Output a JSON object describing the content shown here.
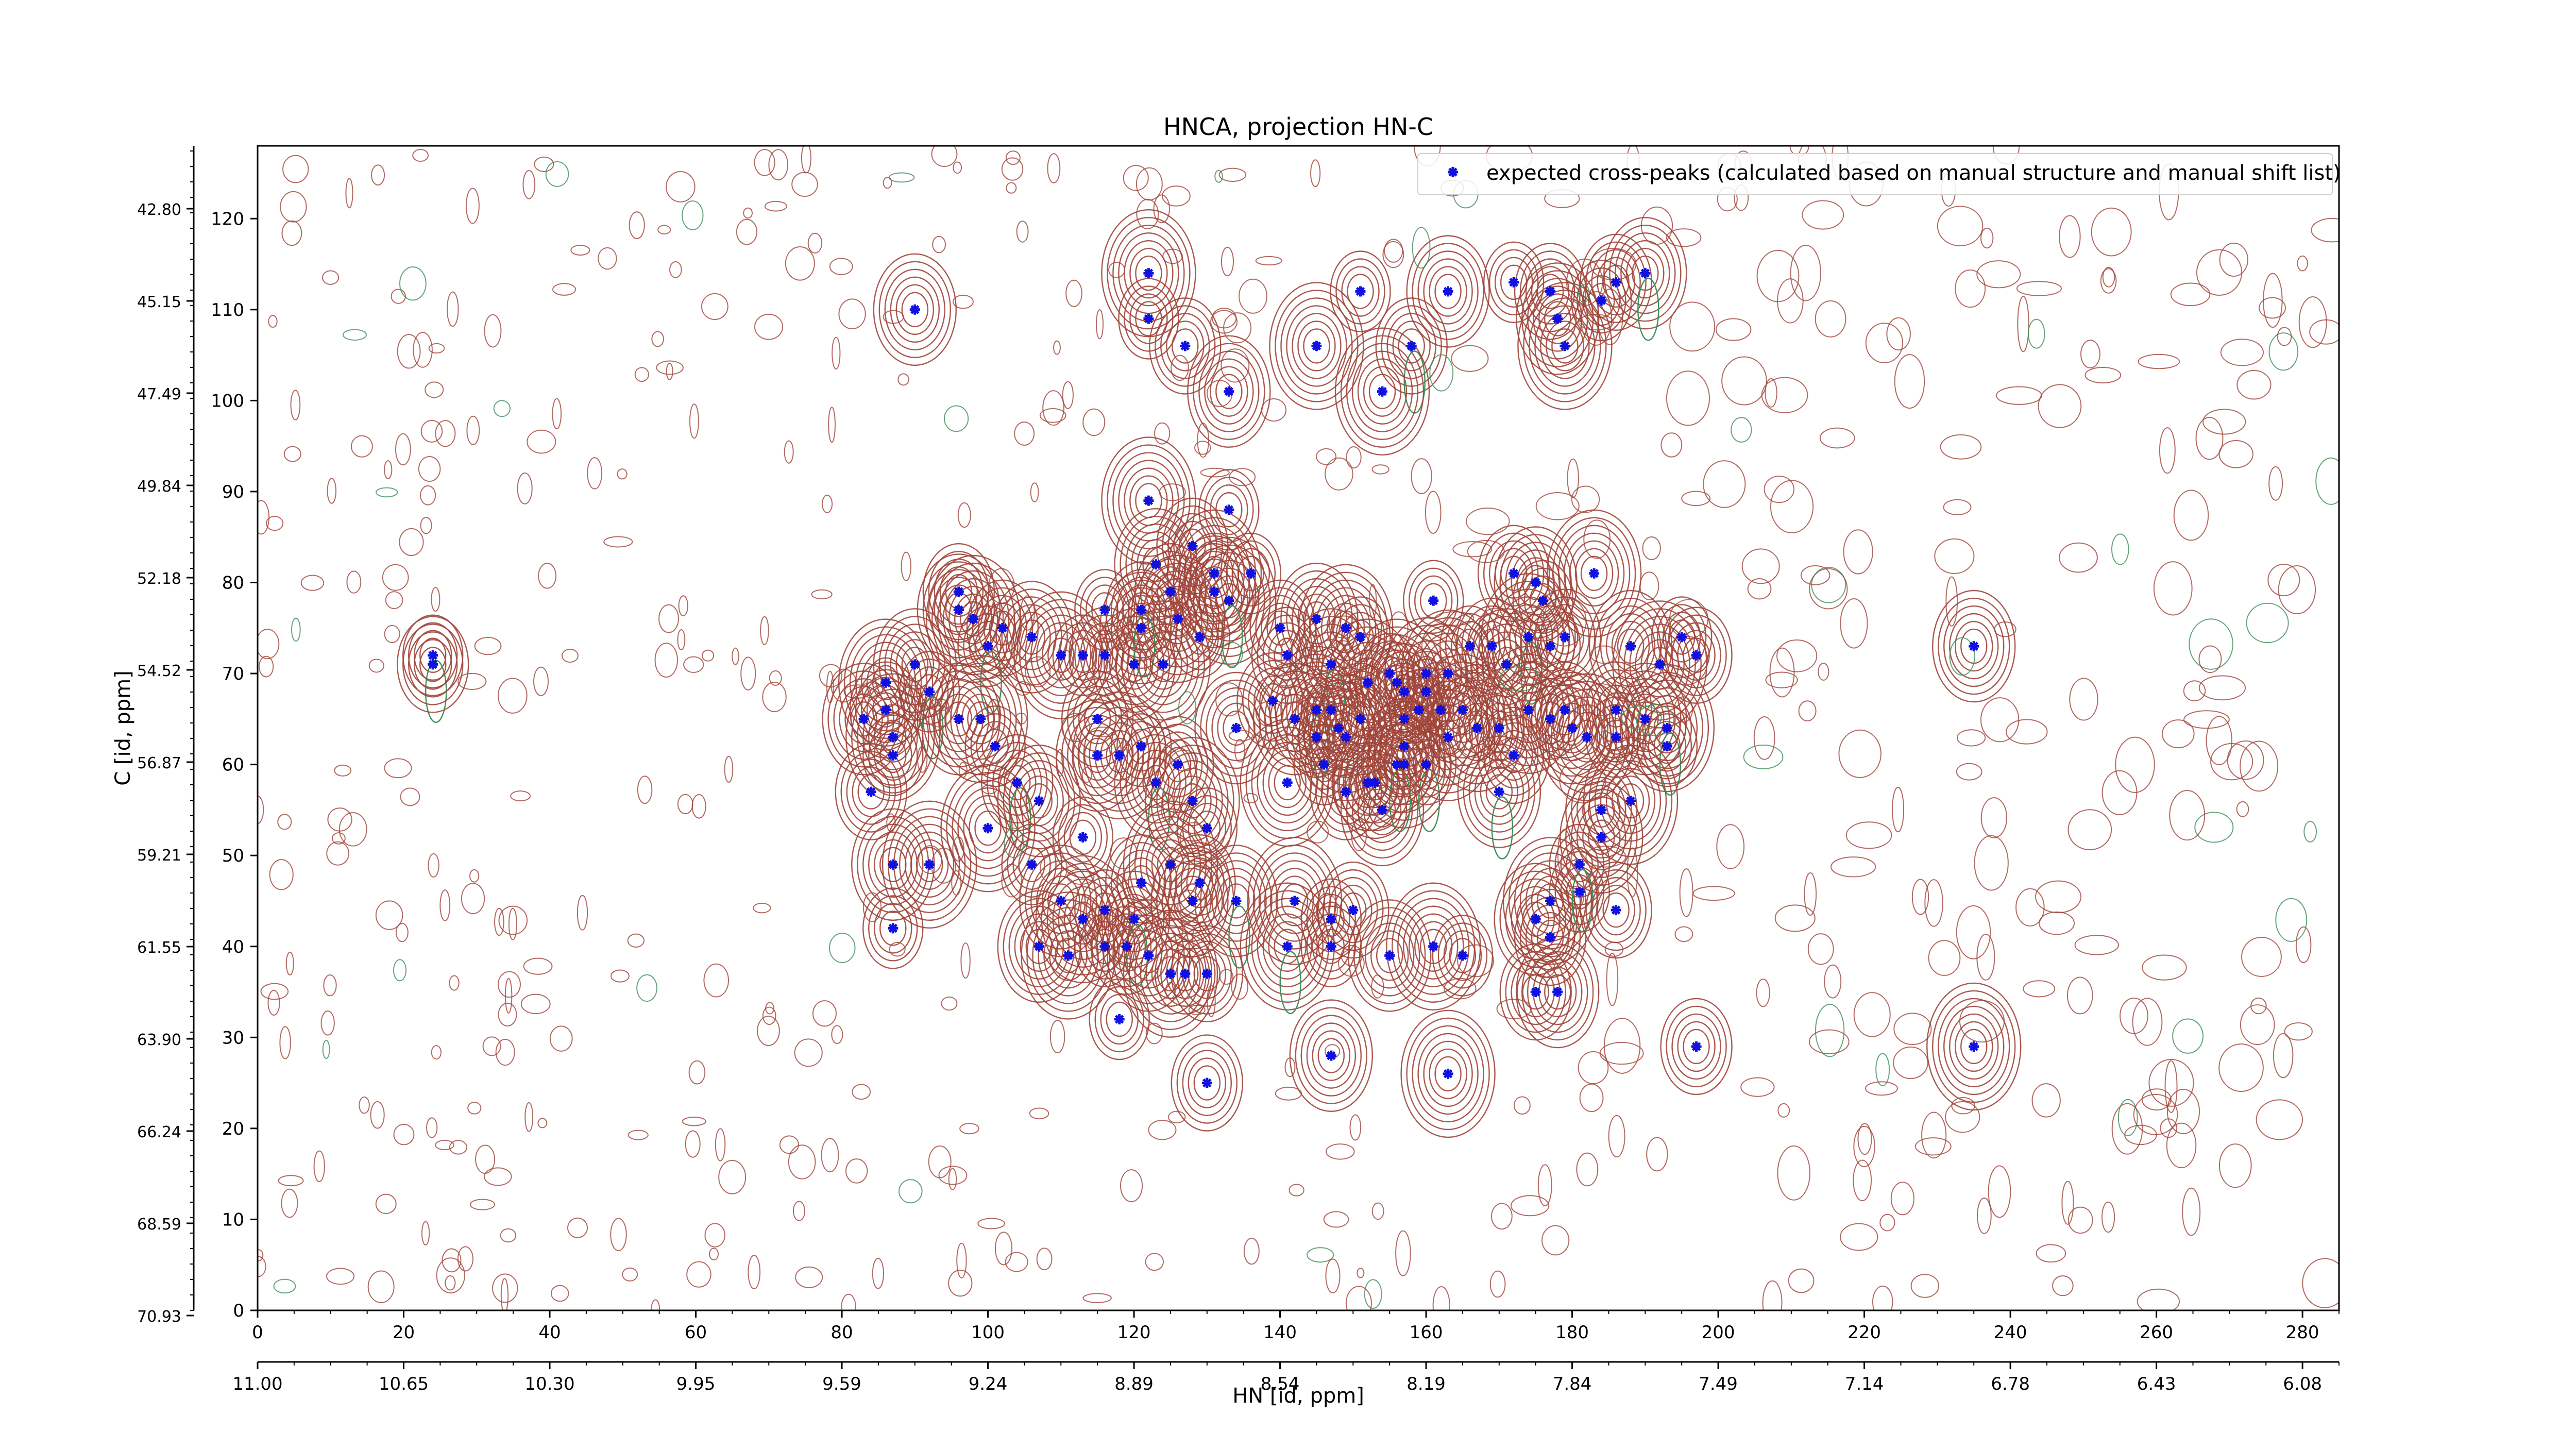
{
  "chart_data": {
    "type": "scatter",
    "title": "HNCA, projection HN-C",
    "xlabel": "HN [id, ppm]",
    "ylabel": "C [id, ppm]",
    "xlim": [
      0,
      285
    ],
    "ylim": [
      0,
      128
    ],
    "x_ticks": [
      0,
      20,
      40,
      60,
      80,
      100,
      120,
      140,
      160,
      180,
      200,
      220,
      240,
      260,
      280
    ],
    "y_ticks": [
      0,
      10,
      20,
      30,
      40,
      50,
      60,
      70,
      80,
      90,
      100,
      110,
      120
    ],
    "hn_ppm_ticks": [
      "11.00",
      "10.65",
      "10.30",
      "9.95",
      "9.59",
      "9.24",
      "8.89",
      "8.54",
      "8.19",
      "7.84",
      "7.49",
      "7.14",
      "6.78",
      "6.43",
      "6.08"
    ],
    "c_ppm_ticks": [
      "70.93",
      "68.59",
      "66.24",
      "63.90",
      "61.55",
      "59.21",
      "56.87",
      "54.52",
      "52.18",
      "49.84",
      "47.49",
      "45.15",
      "42.80"
    ],
    "legend": {
      "position": "top-right",
      "entries": [
        "expected cross-peaks (calculated based on manual structure and manual shift list)"
      ]
    },
    "colors": {
      "positive_contours": "#a0453a",
      "negative_contours": "#3f8f5a",
      "peaks": "#1010e0"
    },
    "series": [
      {
        "name": "expected cross-peaks (calculated based on manual structure and manual shift list)",
        "points": [
          [
            24,
            72
          ],
          [
            24,
            71
          ],
          [
            90,
            110
          ],
          [
            122,
            114
          ],
          [
            122,
            109
          ],
          [
            127,
            106
          ],
          [
            133,
            101
          ],
          [
            145,
            106
          ],
          [
            151,
            112
          ],
          [
            158,
            106
          ],
          [
            163,
            112
          ],
          [
            154,
            101
          ],
          [
            172,
            113
          ],
          [
            177,
            112
          ],
          [
            178,
            109
          ],
          [
            179,
            106
          ],
          [
            184,
            111
          ],
          [
            186,
            113
          ],
          [
            190,
            114
          ],
          [
            122,
            89
          ],
          [
            133,
            88
          ],
          [
            128,
            84
          ],
          [
            123,
            82
          ],
          [
            131,
            81
          ],
          [
            136,
            81
          ],
          [
            125,
            79
          ],
          [
            131,
            79
          ],
          [
            133,
            78
          ],
          [
            161,
            78
          ],
          [
            172,
            81
          ],
          [
            175,
            80
          ],
          [
            183,
            81
          ],
          [
            176,
            78
          ],
          [
            96,
            79
          ],
          [
            96,
            77
          ],
          [
            98,
            76
          ],
          [
            100,
            73
          ],
          [
            102,
            75
          ],
          [
            106,
            74
          ],
          [
            110,
            72
          ],
          [
            113,
            72
          ],
          [
            116,
            72
          ],
          [
            120,
            71
          ],
          [
            124,
            71
          ],
          [
            116,
            77
          ],
          [
            121,
            77
          ],
          [
            121,
            75
          ],
          [
            126,
            76
          ],
          [
            129,
            74
          ],
          [
            140,
            75
          ],
          [
            145,
            76
          ],
          [
            149,
            75
          ],
          [
            151,
            74
          ],
          [
            141,
            72
          ],
          [
            147,
            71
          ],
          [
            152,
            69
          ],
          [
            155,
            70
          ],
          [
            157,
            68
          ],
          [
            160,
            70
          ],
          [
            163,
            70
          ],
          [
            166,
            73
          ],
          [
            169,
            73
          ],
          [
            171,
            71
          ],
          [
            174,
            74
          ],
          [
            177,
            73
          ],
          [
            179,
            74
          ],
          [
            188,
            73
          ],
          [
            192,
            71
          ],
          [
            195,
            74
          ],
          [
            197,
            72
          ],
          [
            90,
            71
          ],
          [
            86,
            69
          ],
          [
            92,
            68
          ],
          [
            86,
            66
          ],
          [
            83,
            65
          ],
          [
            87,
            63
          ],
          [
            87,
            61
          ],
          [
            84,
            57
          ],
          [
            96,
            65
          ],
          [
            99,
            65
          ],
          [
            101,
            62
          ],
          [
            104,
            58
          ],
          [
            107,
            56
          ],
          [
            100,
            53
          ],
          [
            106,
            49
          ],
          [
            115,
            65
          ],
          [
            115,
            61
          ],
          [
            118,
            61
          ],
          [
            121,
            62
          ],
          [
            126,
            60
          ],
          [
            123,
            58
          ],
          [
            128,
            56
          ],
          [
            130,
            53
          ],
          [
            129,
            47
          ],
          [
            128,
            45
          ],
          [
            125,
            49
          ],
          [
            113,
            52
          ],
          [
            139,
            67
          ],
          [
            142,
            65
          ],
          [
            145,
            66
          ],
          [
            147,
            66
          ],
          [
            148,
            64
          ],
          [
            151,
            65
          ],
          [
            149,
            63
          ],
          [
            145,
            63
          ],
          [
            149,
            57
          ],
          [
            153,
            58
          ],
          [
            157,
            60
          ],
          [
            160,
            60
          ],
          [
            157,
            62
          ],
          [
            157,
            65
          ],
          [
            156,
            69
          ],
          [
            160,
            68
          ],
          [
            162,
            66
          ],
          [
            165,
            66
          ],
          [
            163,
            63
          ],
          [
            159,
            66
          ],
          [
            156,
            60
          ],
          [
            134,
            64
          ],
          [
            141,
            58
          ],
          [
            146,
            60
          ],
          [
            152,
            58
          ],
          [
            154,
            55
          ],
          [
            167,
            64
          ],
          [
            170,
            64
          ],
          [
            172,
            61
          ],
          [
            170,
            57
          ],
          [
            174,
            66
          ],
          [
            177,
            65
          ],
          [
            179,
            66
          ],
          [
            180,
            64
          ],
          [
            182,
            63
          ],
          [
            186,
            63
          ],
          [
            186,
            66
          ],
          [
            190,
            65
          ],
          [
            193,
            64
          ],
          [
            193,
            62
          ],
          [
            184,
            55
          ],
          [
            184,
            52
          ],
          [
            188,
            56
          ],
          [
            181,
            46
          ],
          [
            177,
            41
          ],
          [
            175,
            43
          ],
          [
            177,
            45
          ],
          [
            181,
            49
          ],
          [
            186,
            44
          ],
          [
            87,
            49
          ],
          [
            92,
            49
          ],
          [
            87,
            42
          ],
          [
            121,
            47
          ],
          [
            110,
            45
          ],
          [
            113,
            43
          ],
          [
            116,
            44
          ],
          [
            120,
            43
          ],
          [
            107,
            40
          ],
          [
            111,
            39
          ],
          [
            116,
            40
          ],
          [
            119,
            40
          ],
          [
            122,
            39
          ],
          [
            125,
            37
          ],
          [
            127,
            37
          ],
          [
            130,
            37
          ],
          [
            134,
            45
          ],
          [
            142,
            45
          ],
          [
            147,
            43
          ],
          [
            150,
            44
          ],
          [
            155,
            39
          ],
          [
            161,
            40
          ],
          [
            165,
            39
          ],
          [
            175,
            35
          ],
          [
            178,
            35
          ],
          [
            141,
            40
          ],
          [
            147,
            40
          ],
          [
            197,
            29
          ],
          [
            235,
            73
          ],
          [
            235,
            29
          ],
          [
            118,
            32
          ],
          [
            130,
            25
          ],
          [
            147,
            28
          ],
          [
            163,
            26
          ]
        ]
      }
    ]
  }
}
